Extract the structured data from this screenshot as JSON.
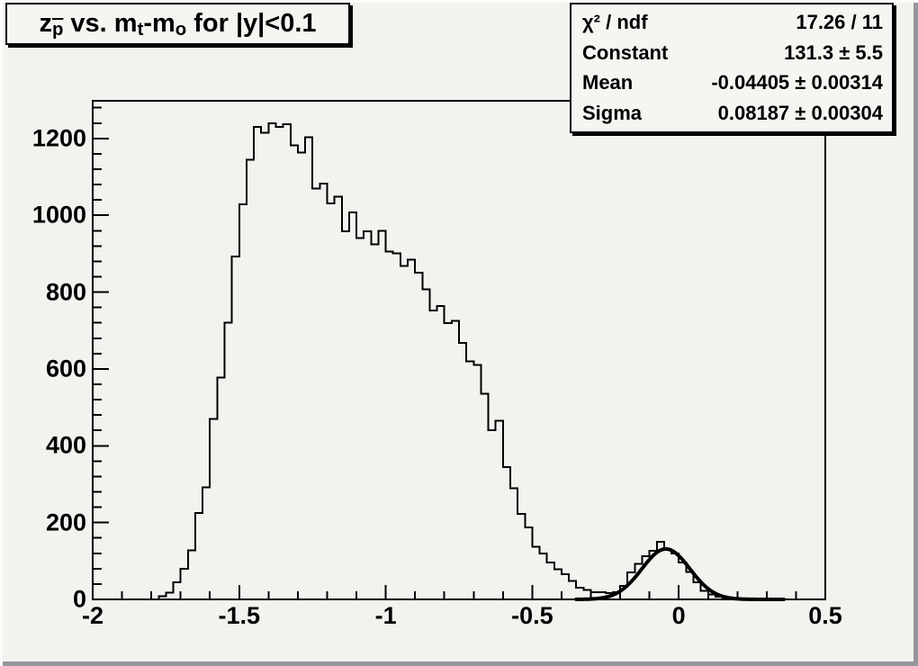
{
  "window": {
    "background_color": "#f2f2ef",
    "box_background_color": "#f5f5f2",
    "line_color": "#000000"
  },
  "title": {
    "text": "z_pbar vs. m_t-m_o for |y|<0.1",
    "segments": [
      {
        "t": "z",
        "style": "base"
      },
      {
        "t": "p",
        "style": "subbar"
      },
      {
        "t": " vs. ",
        "style": "base"
      },
      {
        "t": "m",
        "style": "base"
      },
      {
        "t": "t",
        "style": "sub"
      },
      {
        "t": "-m",
        "style": "base"
      },
      {
        "t": "o",
        "style": "sub"
      },
      {
        "t": " for |y|<0.1",
        "style": "base"
      }
    ]
  },
  "stats": {
    "rows": [
      {
        "label": "χ² / ndf",
        "value": "17.26 / 11"
      },
      {
        "label": "Constant",
        "value": "131.3 ± 5.5"
      },
      {
        "label": "Mean",
        "value": "-0.04405 ± 0.00314"
      },
      {
        "label": "Sigma",
        "value": "0.08187 ± 0.00304"
      }
    ]
  },
  "chart_data": {
    "type": "bar",
    "subtype": "step-histogram",
    "title": "z_pbar vs. m_t-m_o for |y|<0.1",
    "xlabel": "",
    "ylabel": "",
    "xlim": [
      -2,
      0.5
    ],
    "ylim": [
      0,
      1298
    ],
    "grid": false,
    "x_major_ticks": [
      -2,
      -1.5,
      -1,
      -0.5,
      0,
      0.5
    ],
    "x_tick_labels": [
      "-2",
      "-1.5",
      "-1",
      "-0.5",
      "0",
      "0.5"
    ],
    "x_minor_step": 0.1,
    "y_major_ticks": [
      0,
      200,
      400,
      600,
      800,
      1000,
      1200
    ],
    "y_tick_labels": [
      "0",
      "200",
      "400",
      "600",
      "800",
      "1000",
      "1200"
    ],
    "y_minor_step": 40,
    "bin_start": -2,
    "bin_width": 0.025,
    "values": [
      0,
      0,
      0,
      0,
      0,
      0,
      0,
      0,
      0,
      8,
      18,
      45,
      80,
      128,
      225,
      292,
      470,
      578,
      720,
      893,
      1028,
      1145,
      1230,
      1215,
      1240,
      1230,
      1237,
      1182,
      1163,
      1203,
      1070,
      1083,
      1031,
      1048,
      958,
      1008,
      941,
      958,
      924,
      959,
      905,
      901,
      868,
      885,
      850,
      807,
      752,
      764,
      719,
      725,
      668,
      620,
      610,
      535,
      441,
      465,
      344,
      289,
      223,
      187,
      137,
      120,
      96,
      78,
      66,
      48,
      31,
      25,
      19,
      19,
      16,
      19,
      35,
      70,
      92,
      112,
      127,
      150,
      129,
      119,
      96,
      72,
      45,
      22,
      13,
      7,
      4,
      3,
      2,
      1,
      2,
      1,
      2,
      0,
      0,
      0,
      0,
      0,
      0,
      0
    ],
    "fit": {
      "type": "gaussian",
      "constant": 131.3,
      "mean": -0.04405,
      "sigma": 0.08187,
      "range": [
        -0.35,
        0.36
      ],
      "color": "#000000",
      "line_width": 4
    }
  }
}
